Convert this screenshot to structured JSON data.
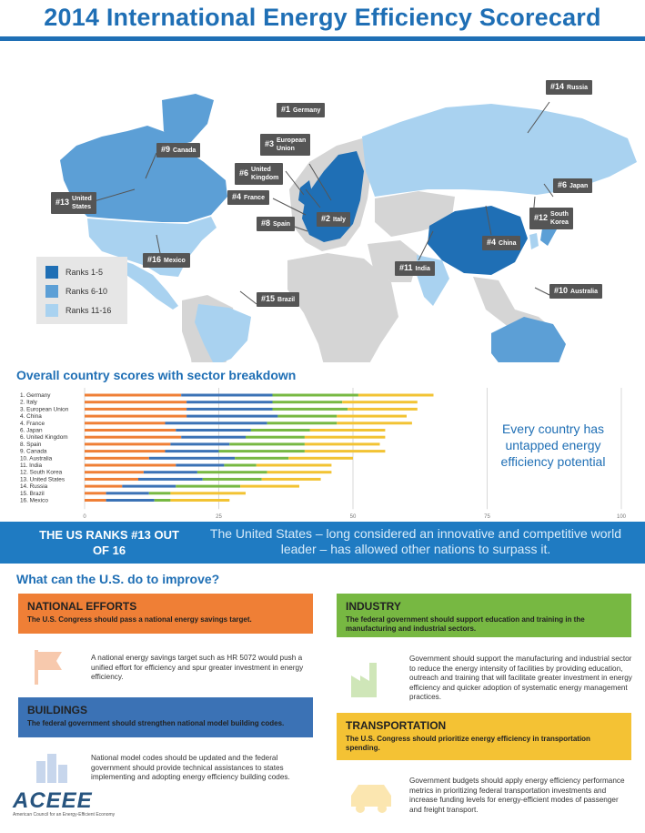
{
  "title": "2014 International Energy Efficiency Scorecard",
  "legend": [
    {
      "label": "Ranks 1-5",
      "color": "#1f6fb5"
    },
    {
      "label": "Ranks 6-10",
      "color": "#5c9fd6"
    },
    {
      "label": "Ranks 11-16",
      "color": "#a9d2f0"
    }
  ],
  "callouts": [
    {
      "rank": "#1",
      "name": "Germany"
    },
    {
      "rank": "#3",
      "name": "European\nUnion"
    },
    {
      "rank": "#6",
      "name": "United\nKingdom"
    },
    {
      "rank": "#4",
      "name": "France"
    },
    {
      "rank": "#8",
      "name": "Spain"
    },
    {
      "rank": "#2",
      "name": "Italy"
    },
    {
      "rank": "#9",
      "name": "Canada"
    },
    {
      "rank": "#13",
      "name": "United\nStates"
    },
    {
      "rank": "#16",
      "name": "Mexico"
    },
    {
      "rank": "#15",
      "name": "Brazil"
    },
    {
      "rank": "#14",
      "name": "Russia"
    },
    {
      "rank": "#6",
      "name": "Japan"
    },
    {
      "rank": "#12",
      "name": "South\nKorea"
    },
    {
      "rank": "#4",
      "name": "China"
    },
    {
      "rank": "#11",
      "name": "India"
    },
    {
      "rank": "#10",
      "name": "Australia"
    }
  ],
  "chart_title": "Overall country scores with sector breakdown",
  "chart_data": {
    "type": "bar",
    "orientation": "horizontal",
    "stacked": true,
    "categories": [
      "1. Germany",
      "2. Italy",
      "3. European Union",
      "4. China",
      "4. France",
      "6. Japan",
      "6. United Kingdom",
      "8. Spain",
      "9. Canada",
      "10. Australia",
      "11. India",
      "12. South Korea",
      "13. United States",
      "14. Russia",
      "15. Brazil",
      "16. Mexico"
    ],
    "series": [
      {
        "color": "#ef7f36",
        "values": [
          18,
          19,
          19,
          19,
          15,
          17,
          18,
          16,
          15,
          12,
          17,
          11,
          10,
          7,
          4,
          4
        ]
      },
      {
        "color": "#3b72b5",
        "values": [
          17,
          16,
          16,
          17,
          19,
          14,
          12,
          11,
          10,
          16,
          9,
          10,
          12,
          10,
          8,
          9
        ]
      },
      {
        "color": "#77b842",
        "values": [
          16,
          13,
          14,
          11,
          13,
          11,
          11,
          14,
          16,
          10,
          6,
          13,
          11,
          12,
          4,
          3
        ]
      },
      {
        "color": "#f2c333",
        "values": [
          14,
          14,
          13,
          13,
          14,
          14,
          15,
          14,
          15,
          12,
          14,
          12,
          11,
          11,
          14,
          11
        ]
      }
    ],
    "x_ticks": [
      "0",
      "25",
      "50",
      "75",
      "100"
    ],
    "xlim": [
      0,
      100
    ],
    "grid": true
  },
  "side_note": "Every country has untapped energy efficiency potential",
  "band": {
    "left": "THE US RANKS #13 OUT OF 16",
    "right": "The United States – long considered an innovative and competitive world leader – has allowed other nations to surpass it."
  },
  "improve_title": "What can the U.S. do to improve?",
  "cards": {
    "national": {
      "heading": "NATIONAL EFFORTS",
      "sub": "The U.S. Congress should pass a national energy savings target.",
      "body": "A national energy savings target such as HR 5072 would push a unified effort for efficiency and spur greater investment in energy efficiency.",
      "color": "#ef7f36"
    },
    "industry": {
      "heading": "INDUSTRY",
      "sub": "The federal government should support education and training in the manufacturing and industrial sectors.",
      "body": "Government should support the manufacturing and industrial sector to reduce the energy intensity of facilities by providing education, outreach and training that will facilitate greater investment in energy efficiency and quicker adoption of systematic energy management practices.",
      "color": "#77b842"
    },
    "buildings": {
      "heading": "BUILDINGS",
      "sub": "The federal government should strengthen national model building codes.",
      "body": "National model codes should be updated and the federal government should provide technical assistances to states implementing and adopting energy efficiency building codes.",
      "color": "#3b72b5"
    },
    "transportation": {
      "heading": "TRANSPORTATION",
      "sub": "The U.S. Congress should prioritize energy efficiency in transportation spending.",
      "body": "Government budgets should apply energy efficiency performance metrics in prioritizing federal transportation investments and increase funding levels for energy-efficient modes of passenger and freight transport.",
      "color": "#f4c234"
    }
  },
  "logo": {
    "name": "ACEEE",
    "tagline": "American Council for an Energy-Efficient Economy"
  }
}
